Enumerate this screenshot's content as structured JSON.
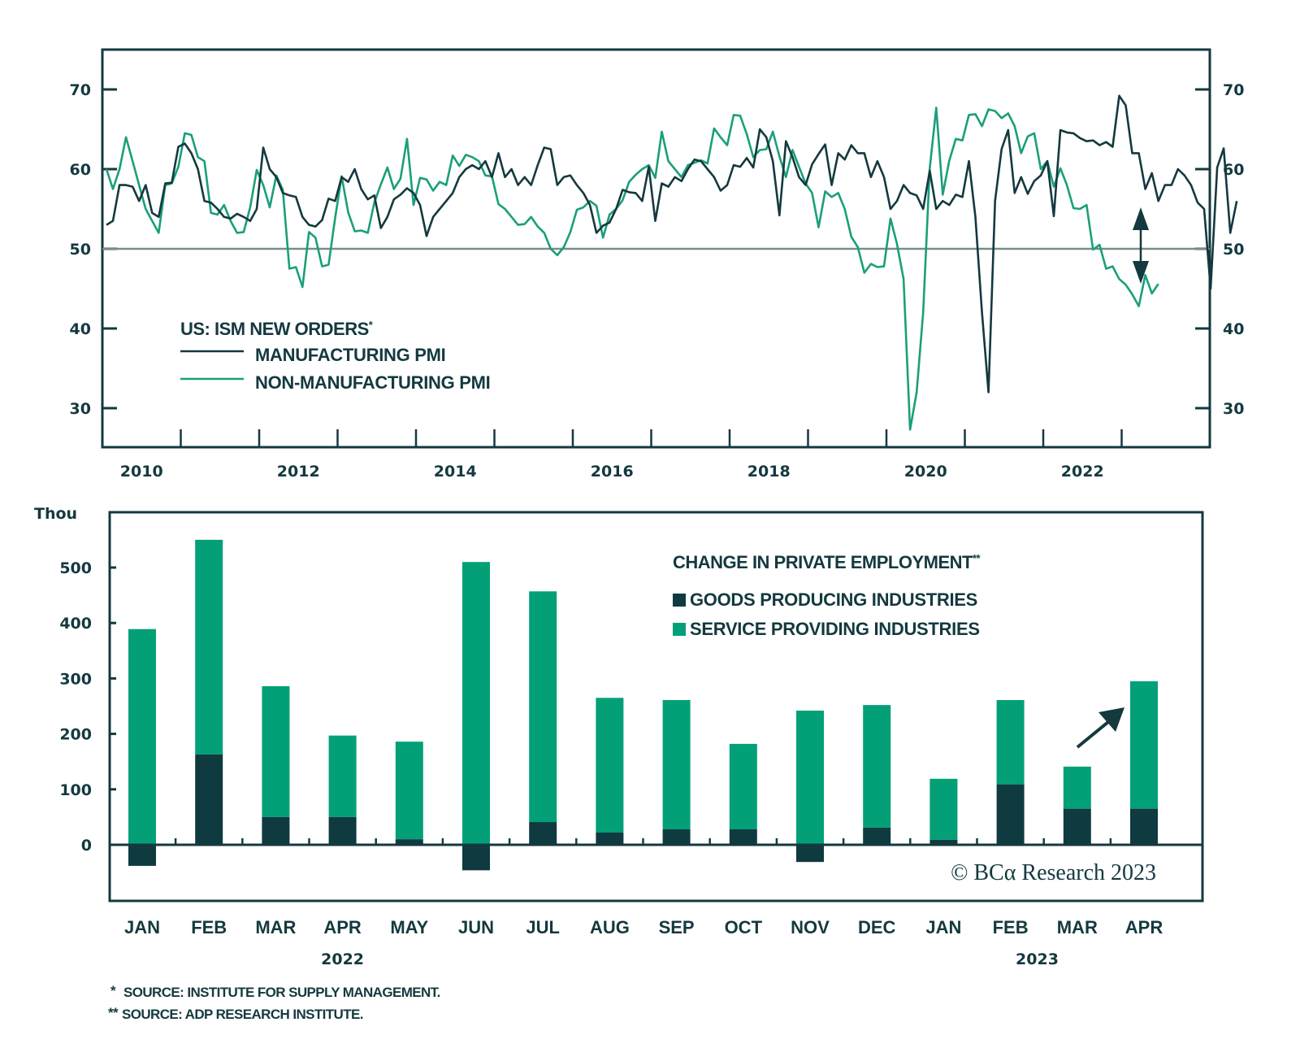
{
  "chart_data": [
    {
      "type": "line",
      "title": "US: ISM NEW ORDERS*",
      "xlabel": "",
      "ylabel": "",
      "ylim": [
        25,
        75
      ],
      "yticks": [
        30,
        40,
        50,
        60,
        70
      ],
      "ytick_labels": [
        "30",
        "40",
        "50",
        "60",
        "70"
      ],
      "reference_line": 50,
      "x_start": "2010-01",
      "x_end": "2023-04",
      "x_year_ticks": [
        2010,
        2011,
        2012,
        2013,
        2014,
        2015,
        2016,
        2017,
        2018,
        2019,
        2020,
        2021,
        2022,
        2023
      ],
      "x_tick_labels": [
        "2010",
        "2012",
        "2014",
        "2016",
        "2018",
        "2020",
        "2022"
      ],
      "legend_placement": "center-left",
      "annotation": "double-headed arrow between series at latest reading",
      "series": [
        {
          "name": "MANUFACTURING PMI",
          "color": "#14393f",
          "values": [
            53,
            53.5,
            58,
            58,
            57.8,
            56,
            58,
            54.5,
            54,
            58.2,
            58.3,
            62.8,
            63.2,
            62,
            60,
            56,
            55.8,
            55,
            54,
            53.8,
            54.4,
            54,
            53.5,
            55,
            62.7,
            60,
            59,
            57,
            56.7,
            56.5,
            54,
            53,
            52.8,
            53.6,
            56.3,
            56,
            59,
            58.4,
            60,
            57.5,
            56.2,
            56.7,
            52.6,
            54,
            56.2,
            56.8,
            57.6,
            57,
            55.5,
            51.6,
            54,
            55,
            56,
            57,
            59,
            60,
            60.5,
            60,
            61,
            59,
            62,
            59,
            60,
            58,
            59,
            58,
            60.5,
            62.7,
            62.5,
            58,
            59,
            59.2,
            58,
            57,
            55.5,
            52,
            52.9,
            53.3,
            55,
            57.4,
            57.1,
            57,
            56,
            60.3,
            53.5,
            58.2,
            57.8,
            59,
            58.5,
            60,
            61.2,
            61,
            60,
            59,
            57.3,
            58,
            60.5,
            60.3,
            61.4,
            60.2,
            65,
            64,
            61,
            54.2,
            63.5,
            61.5,
            59,
            58,
            60.6,
            61.9,
            63.1,
            58,
            62,
            61.2,
            63,
            62,
            62,
            59,
            61,
            59,
            55,
            56,
            58,
            57,
            56.7,
            55,
            59.8,
            55,
            56,
            55.5,
            56.8,
            56.5,
            61,
            54,
            42,
            32,
            56,
            62.5,
            64.9,
            57,
            59,
            56.9,
            58.5,
            59.2,
            61,
            54.1,
            64.9,
            64.6,
            64.5,
            63.9,
            63.5,
            63.6,
            63,
            63.4,
            62.8,
            69.2,
            68,
            62,
            62,
            57.5,
            59.5,
            56,
            58,
            58,
            60,
            59.2,
            58,
            55.8,
            55,
            45,
            60.2,
            62.6,
            52,
            56
          ]
        },
        {
          "name": "NON-MANUFACTURING PMI",
          "color": "#1a9f7a",
          "values": [
            60,
            57.5,
            60,
            64,
            61,
            58,
            55,
            53.5,
            52,
            58,
            58.2,
            60.3,
            64.5,
            64.3,
            61.5,
            61,
            54.5,
            54.3,
            55.5,
            53.5,
            52,
            52.1,
            55.2,
            59.9,
            58,
            55.2,
            59.2,
            57.4,
            47.5,
            47.7,
            45.2,
            52.1,
            51.4,
            47.8,
            48,
            53.9,
            59.1,
            54.6,
            52.2,
            52.3,
            52,
            55.8,
            58.1,
            60.2,
            57.5,
            58.8,
            63.8,
            55.5,
            58.9,
            58.7,
            57.3,
            58.4,
            58,
            61.7,
            60.4,
            61.8,
            61.5,
            61,
            59.2,
            59.1,
            55.6,
            55,
            54,
            53,
            53.1,
            54,
            52.8,
            52,
            50,
            49.2,
            50.2,
            52.1,
            54.9,
            55.2,
            56,
            55.4,
            51.4,
            54.3,
            55,
            56.1,
            58.4,
            59.3,
            60,
            60.5,
            58.9,
            64.7,
            61,
            60,
            59,
            60.5,
            60.8,
            61.1,
            60.7,
            65.1,
            64,
            63,
            66.8,
            66.7,
            64.4,
            61.5,
            62.4,
            62.5,
            64.7,
            61.6,
            59,
            62.4,
            60.3,
            58.2,
            57,
            52.7,
            57.2,
            56.5,
            57,
            55,
            51.5,
            50.2,
            47,
            48.1,
            47.7,
            47.8,
            53.8,
            50.6,
            46.2,
            27.3,
            32,
            42,
            60.1,
            67.7,
            56.8,
            61.1,
            63.8,
            63.6,
            66.8,
            66.9,
            65.4,
            67.5,
            67.3,
            66.4,
            67,
            65.4,
            62,
            64.1,
            64.5,
            60,
            61,
            57.8,
            60.1,
            58,
            55.1,
            55,
            55.5,
            49.9,
            50.5,
            47.5,
            47.8,
            46.2,
            45.5,
            44.3,
            42.8,
            46.7,
            44.4,
            45.6
          ]
        }
      ],
      "left_axis_labels": [
        "70",
        "60",
        "50",
        "40",
        "30"
      ],
      "right_axis_labels": [
        "70",
        "60",
        "50",
        "40",
        "30"
      ]
    },
    {
      "type": "bar",
      "stacked": true,
      "title": "CHANGE IN PRIVATE EMPLOYMENT**",
      "ylabel": "Thou",
      "ylim": [
        -60,
        610
      ],
      "yticks": [
        0,
        100,
        200,
        300,
        400,
        500
      ],
      "ytick_labels": [
        "0",
        "100",
        "200",
        "300",
        "400",
        "500"
      ],
      "categories": [
        "JAN",
        "FEB",
        "MAR",
        "APR",
        "MAY",
        "JUN",
        "JUL",
        "AUG",
        "SEP",
        "OCT",
        "NOV",
        "DEC",
        "JAN",
        "FEB",
        "MAR",
        "APR"
      ],
      "year_labels": [
        {
          "label": "2022",
          "center_category_index": 3.0
        },
        {
          "label": "2023",
          "center_category_index": 13.4
        }
      ],
      "legend_placement": "top-right",
      "series": [
        {
          "name": "GOODS PRODUCING INDUSTRIES",
          "color": "#0f3a40",
          "values": [
            -38,
            163,
            50,
            50,
            10,
            -46,
            41,
            22,
            28,
            28,
            -31,
            31,
            9,
            109,
            65,
            65
          ]
        },
        {
          "name": "SERVICE PROVIDING INDUSTRIES",
          "color": "#03a077",
          "values": [
            389,
            387,
            236,
            147,
            176,
            510,
            416,
            243,
            233,
            154,
            242,
            221,
            110,
            152,
            76,
            230
          ]
        }
      ],
      "annotation": "upward arrow pointing to APR 2023 bar"
    }
  ],
  "footnotes": [
    {
      "marker": "*",
      "text": "SOURCE: INSTITUTE FOR SUPPLY MANAGEMENT."
    },
    {
      "marker": "**",
      "text": "SOURCE: ADP RESEARCH INSTITUTE."
    }
  ],
  "copyright": "© BCα Research 2023",
  "legend": {
    "top_title": "US: ISM NEW ORDERS",
    "top_title_marker": "*",
    "top_items": [
      "MANUFACTURING PMI",
      "NON-MANUFACTURING PMI"
    ],
    "bottom_title": "CHANGE IN PRIVATE EMPLOYMENT",
    "bottom_title_marker": "**",
    "bottom_items": [
      "GOODS PRODUCING INDUSTRIES",
      "SERVICE PROVIDING INDUSTRIES"
    ]
  },
  "colors": {
    "axis": "#14393f",
    "reference_line": "#7b8c8c",
    "manufacturing": "#14393f",
    "non_manufacturing": "#1a9f7a",
    "goods": "#0f3a40",
    "services": "#03a077"
  }
}
